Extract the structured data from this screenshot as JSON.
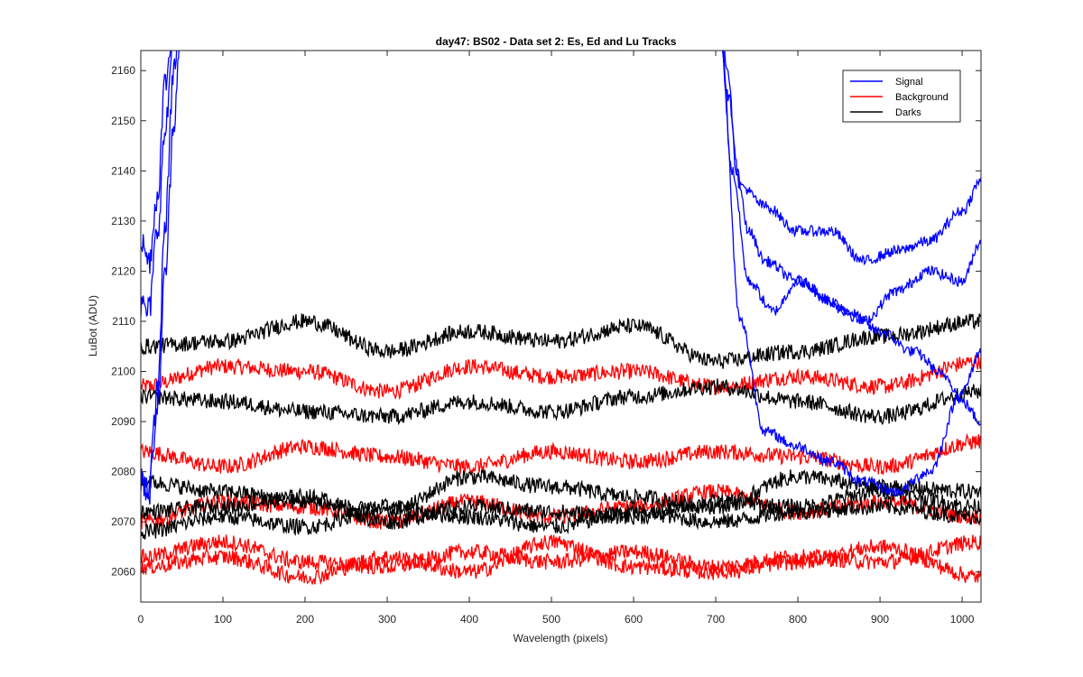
{
  "chart_data": {
    "type": "line",
    "title": "day47: BS02 - Data set 2: Es, Ed and Lu Tracks",
    "xlabel": "Wavelength (pixels)",
    "ylabel": "LuBot (ADU)",
    "xlim": [
      0,
      1023
    ],
    "ylim": [
      2054,
      2164
    ],
    "xticks": [
      0,
      100,
      200,
      300,
      400,
      500,
      600,
      700,
      800,
      900,
      1000
    ],
    "yticks": [
      2060,
      2070,
      2080,
      2090,
      2100,
      2110,
      2120,
      2130,
      2140,
      2150,
      2160
    ],
    "grid": false,
    "legend": {
      "location": "top-right",
      "entries": [
        "Signal",
        "Background",
        "Darks"
      ]
    },
    "colors": {
      "Signal": "#0000ff",
      "Background": "#ff0000",
      "Darks": "#000000"
    },
    "series": [
      {
        "group": "Signal",
        "points": [
          [
            0,
            2113
          ],
          [
            10,
            2112
          ],
          [
            20,
            2128
          ],
          [
            30,
            2148
          ],
          [
            40,
            2168
          ]
        ],
        "continues_above": [
          50,
          705
        ],
        "tail": [
          [
            705,
            2168
          ],
          [
            715,
            2160
          ],
          [
            725,
            2140
          ],
          [
            740,
            2128
          ],
          [
            760,
            2122
          ],
          [
            800,
            2118
          ],
          [
            860,
            2112
          ],
          [
            900,
            2108
          ],
          [
            940,
            2104
          ],
          [
            980,
            2099
          ],
          [
            1000,
            2094
          ],
          [
            1023,
            2090
          ]
        ]
      },
      {
        "group": "Signal",
        "points": [
          [
            0,
            2126
          ],
          [
            10,
            2122
          ],
          [
            20,
            2135
          ],
          [
            30,
            2158
          ],
          [
            40,
            2168
          ]
        ],
        "continues_above": [
          50,
          705
        ],
        "tail": [
          [
            705,
            2168
          ],
          [
            715,
            2155
          ],
          [
            730,
            2137
          ],
          [
            760,
            2133
          ],
          [
            800,
            2128
          ],
          [
            840,
            2128
          ],
          [
            880,
            2122
          ],
          [
            920,
            2124
          ],
          [
            960,
            2126
          ],
          [
            1000,
            2132
          ],
          [
            1023,
            2138
          ]
        ]
      },
      {
        "group": "Signal",
        "points": [
          [
            0,
            2080
          ],
          [
            10,
            2077
          ],
          [
            20,
            2096
          ],
          [
            30,
            2130
          ],
          [
            40,
            2160
          ]
        ],
        "continues_above": [
          50,
          705
        ],
        "tail": [
          [
            705,
            2168
          ],
          [
            720,
            2140
          ],
          [
            740,
            2118
          ],
          [
            770,
            2112
          ],
          [
            800,
            2118
          ],
          [
            840,
            2114
          ],
          [
            880,
            2110
          ],
          [
            920,
            2116
          ],
          [
            960,
            2120
          ],
          [
            1000,
            2118
          ],
          [
            1023,
            2126
          ]
        ]
      },
      {
        "group": "Signal",
        "points": [
          [
            0,
            2078
          ],
          [
            10,
            2076
          ],
          [
            20,
            2092
          ],
          [
            30,
            2120
          ],
          [
            40,
            2150
          ]
        ],
        "continues_above": [
          50,
          705
        ],
        "tail": [
          [
            705,
            2168
          ],
          [
            730,
            2110
          ],
          [
            760,
            2088
          ],
          [
            800,
            2085
          ],
          [
            840,
            2082
          ],
          [
            880,
            2078
          ],
          [
            920,
            2076
          ],
          [
            960,
            2080
          ],
          [
            1000,
            2096
          ],
          [
            1023,
            2104
          ]
        ]
      },
      {
        "group": "Background",
        "x": [
          0,
          100,
          200,
          300,
          400,
          500,
          600,
          700,
          800,
          900,
          1023
        ],
        "y": [
          2097,
          2101,
          2100,
          2096,
          2101,
          2099,
          2100,
          2097,
          2099,
          2097,
          2102
        ]
      },
      {
        "group": "Background",
        "x": [
          0,
          100,
          200,
          300,
          400,
          500,
          600,
          700,
          800,
          900,
          1023
        ],
        "y": [
          2084,
          2081,
          2085,
          2083,
          2081,
          2084,
          2082,
          2084,
          2083,
          2081,
          2086
        ]
      },
      {
        "group": "Background",
        "x": [
          0,
          100,
          200,
          300,
          400,
          500,
          600,
          700,
          800,
          900,
          1023
        ],
        "y": [
          2070,
          2074,
          2073,
          2070,
          2074,
          2071,
          2073,
          2076,
          2072,
          2074,
          2071
        ]
      },
      {
        "group": "Background",
        "x": [
          0,
          100,
          200,
          300,
          400,
          500,
          600,
          700,
          800,
          900,
          1023
        ],
        "y": [
          2063,
          2066,
          2062,
          2061,
          2064,
          2062,
          2064,
          2061,
          2063,
          2062,
          2066
        ]
      },
      {
        "group": "Background",
        "x": [
          0,
          100,
          200,
          300,
          400,
          500,
          600,
          700,
          800,
          900,
          1023
        ],
        "y": [
          2061,
          2063,
          2059,
          2063,
          2060,
          2066,
          2061,
          2060,
          2062,
          2065,
          2059
        ]
      },
      {
        "group": "Darks",
        "x": [
          0,
          100,
          200,
          300,
          400,
          500,
          600,
          700,
          800,
          900,
          1023
        ],
        "y": [
          2105,
          2106,
          2110,
          2104,
          2108,
          2106,
          2109,
          2102,
          2104,
          2107,
          2110
        ]
      },
      {
        "group": "Darks",
        "x": [
          0,
          100,
          200,
          300,
          400,
          500,
          600,
          700,
          800,
          900,
          1023
        ],
        "y": [
          2095,
          2094,
          2092,
          2091,
          2094,
          2092,
          2095,
          2097,
          2094,
          2091,
          2096
        ]
      },
      {
        "group": "Darks",
        "x": [
          0,
          100,
          200,
          300,
          400,
          500,
          600,
          700,
          800,
          900,
          1023
        ],
        "y": [
          2078,
          2076,
          2074,
          2072,
          2079,
          2077,
          2075,
          2073,
          2079,
          2077,
          2076
        ]
      },
      {
        "group": "Darks",
        "x": [
          0,
          100,
          200,
          300,
          400,
          500,
          600,
          700,
          800,
          900,
          1023
        ],
        "y": [
          2072,
          2073,
          2075,
          2070,
          2073,
          2072,
          2071,
          2074,
          2073,
          2076,
          2073
        ]
      },
      {
        "group": "Darks",
        "x": [
          0,
          100,
          200,
          300,
          400,
          500,
          600,
          700,
          800,
          900,
          1023
        ],
        "y": [
          2068,
          2071,
          2069,
          2073,
          2071,
          2069,
          2072,
          2070,
          2072,
          2073,
          2071
        ]
      }
    ]
  }
}
